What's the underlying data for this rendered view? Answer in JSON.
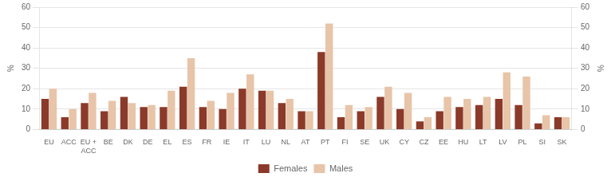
{
  "chart_data": {
    "type": "bar",
    "categories": [
      "EU",
      "ACC",
      "EU +\nACC",
      "BE",
      "DK",
      "DE",
      "EL",
      "ES",
      "FR",
      "IE",
      "IT",
      "LU",
      "NL",
      "AT",
      "PT",
      "FI",
      "SE",
      "UK",
      "CY",
      "CZ",
      "EE",
      "HU",
      "LT",
      "LV",
      "PL",
      "SI",
      "SK"
    ],
    "series": [
      {
        "name": "Females",
        "color": "#8B3A2A",
        "values": [
          15,
          6,
          13,
          9,
          16,
          11,
          11,
          21,
          11,
          10,
          20,
          19,
          13,
          9,
          38,
          6,
          9,
          16,
          10,
          4,
          9,
          11,
          12,
          15,
          12,
          3,
          6
        ]
      },
      {
        "name": "Males",
        "color": "#E8C4A8",
        "values": [
          20,
          10,
          18,
          14,
          13,
          12,
          19,
          35,
          14,
          18,
          27,
          19,
          15,
          9,
          52,
          12,
          11,
          21,
          18,
          6,
          16,
          15,
          16,
          28,
          26,
          7,
          6
        ]
      }
    ],
    "ylabel": "%",
    "y2label": "%",
    "ylim": [
      0,
      60
    ],
    "yticks": [
      0,
      10,
      20,
      30,
      40,
      50,
      60
    ],
    "y2lim": [
      0,
      60
    ],
    "y2ticks": [
      0,
      10,
      20,
      30,
      40,
      50,
      60
    ],
    "grid": true,
    "legend": "bottom"
  }
}
